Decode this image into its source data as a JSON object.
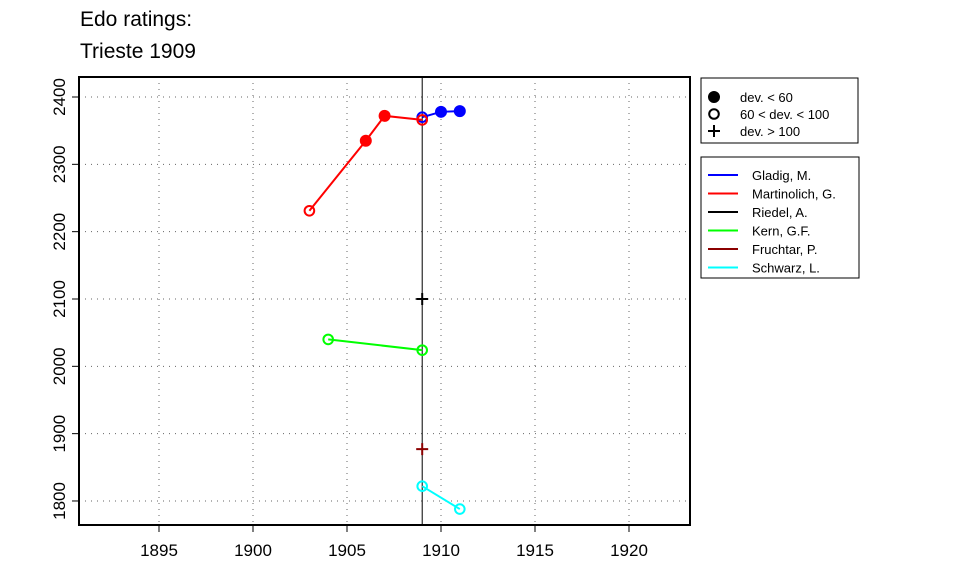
{
  "chart_data": {
    "type": "line",
    "title": [
      "Edo ratings:",
      "Trieste 1909"
    ],
    "xlabel": "",
    "ylabel": "",
    "xlim": [
      1890.8,
      1923.2
    ],
    "ylim": [
      1766,
      2430
    ],
    "xticks": [
      1895,
      1900,
      1905,
      1910,
      1915,
      1920
    ],
    "yticks": [
      1800,
      1900,
      2000,
      2100,
      2200,
      2300,
      2400
    ],
    "grid": true,
    "reference_line_x": 1909,
    "marker_legend": [
      {
        "label": "dev. < 60",
        "marker": "filled"
      },
      {
        "label": "60 < dev. < 100",
        "marker": "open"
      },
      {
        "label": "dev. > 100",
        "marker": "plus"
      }
    ],
    "legend_placement": "right",
    "series": [
      {
        "name": "Gladig, M.",
        "color": "#0000ff",
        "points": [
          [
            1909,
            2370,
            "open"
          ],
          [
            1910,
            2378,
            "filled"
          ],
          [
            1911,
            2379,
            "filled"
          ]
        ]
      },
      {
        "name": "Martinolich, G.",
        "color": "#ff0000",
        "points": [
          [
            1903,
            2231,
            "open"
          ],
          [
            1906,
            2335,
            "filled"
          ],
          [
            1907,
            2372,
            "filled"
          ],
          [
            1909,
            2366,
            "open"
          ]
        ]
      },
      {
        "name": "Riedel, A.",
        "color": "#000000",
        "points": [
          [
            1909,
            2100,
            "plus"
          ]
        ]
      },
      {
        "name": "Kern, G.F.",
        "color": "#00ff00",
        "points": [
          [
            1904,
            2040,
            "open"
          ],
          [
            1909,
            2024,
            "open"
          ]
        ]
      },
      {
        "name": "Fruchtar, P.",
        "color": "#8b0000",
        "points": [
          [
            1909,
            1877,
            "plus"
          ]
        ]
      },
      {
        "name": "Schwarz, L.",
        "color": "#00ffff",
        "points": [
          [
            1909,
            1822,
            "open"
          ],
          [
            1911,
            1788,
            "open"
          ]
        ]
      }
    ]
  }
}
